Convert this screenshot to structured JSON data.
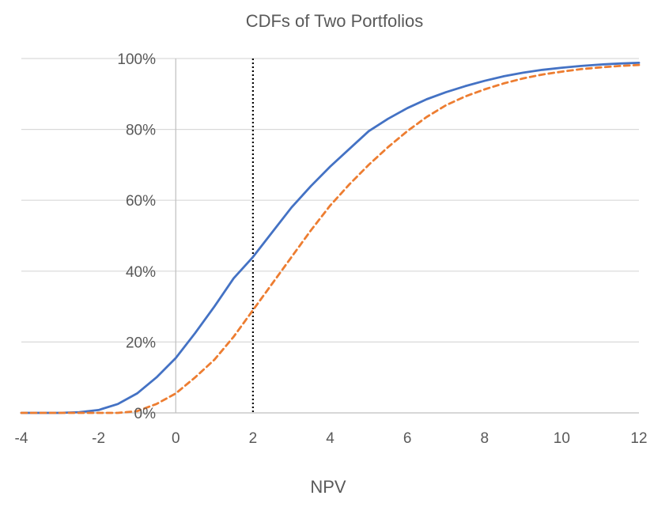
{
  "chart_data": {
    "type": "line",
    "title": "CDFs of Two Portfolios",
    "xlabel": "NPV",
    "ylabel": "",
    "xlim": [
      -4,
      12
    ],
    "ylim": [
      0,
      1
    ],
    "x_ticks": [
      "-4",
      "-2",
      "0",
      "2",
      "4",
      "6",
      "8",
      "10",
      "12"
    ],
    "y_ticks": [
      "0%",
      "20%",
      "40%",
      "60%",
      "80%",
      "100%"
    ],
    "grid": "horizontal",
    "reference_line": {
      "x": 2,
      "style": "dotted",
      "color": "#000000"
    },
    "series": [
      {
        "color": "#4472C4",
        "style": "solid",
        "points": [
          [
            -4,
            0
          ],
          [
            -3,
            0
          ],
          [
            -2.5,
            0.002
          ],
          [
            -2,
            0.008
          ],
          [
            -1.5,
            0.025
          ],
          [
            -1,
            0.055
          ],
          [
            -0.5,
            0.1
          ],
          [
            0,
            0.155
          ],
          [
            0.5,
            0.225
          ],
          [
            1,
            0.3
          ],
          [
            1.5,
            0.38
          ],
          [
            2,
            0.44
          ],
          [
            2.5,
            0.51
          ],
          [
            3,
            0.58
          ],
          [
            3.5,
            0.64
          ],
          [
            4,
            0.695
          ],
          [
            4.5,
            0.745
          ],
          [
            5,
            0.795
          ],
          [
            5.5,
            0.83
          ],
          [
            6,
            0.86
          ],
          [
            6.5,
            0.885
          ],
          [
            7,
            0.905
          ],
          [
            7.5,
            0.922
          ],
          [
            8,
            0.937
          ],
          [
            8.5,
            0.95
          ],
          [
            9,
            0.96
          ],
          [
            9.5,
            0.968
          ],
          [
            10,
            0.974
          ],
          [
            10.5,
            0.979
          ],
          [
            11,
            0.983
          ],
          [
            11.5,
            0.986
          ],
          [
            12,
            0.988
          ]
        ]
      },
      {
        "color": "#ED7D31",
        "style": "dashed",
        "points": [
          [
            -4,
            0
          ],
          [
            -2,
            0
          ],
          [
            -1.5,
            0
          ],
          [
            -1,
            0.005
          ],
          [
            -0.5,
            0.025
          ],
          [
            0,
            0.055
          ],
          [
            0.5,
            0.1
          ],
          [
            1,
            0.15
          ],
          [
            1.5,
            0.215
          ],
          [
            2,
            0.29
          ],
          [
            2.5,
            0.365
          ],
          [
            3,
            0.44
          ],
          [
            3.5,
            0.515
          ],
          [
            4,
            0.585
          ],
          [
            4.5,
            0.645
          ],
          [
            5,
            0.7
          ],
          [
            5.5,
            0.75
          ],
          [
            6,
            0.795
          ],
          [
            6.5,
            0.835
          ],
          [
            7,
            0.868
          ],
          [
            7.5,
            0.893
          ],
          [
            8,
            0.913
          ],
          [
            8.5,
            0.93
          ],
          [
            9,
            0.944
          ],
          [
            9.5,
            0.955
          ],
          [
            10,
            0.963
          ],
          [
            10.5,
            0.97
          ],
          [
            11,
            0.975
          ],
          [
            11.5,
            0.979
          ],
          [
            12,
            0.982
          ]
        ]
      }
    ]
  }
}
